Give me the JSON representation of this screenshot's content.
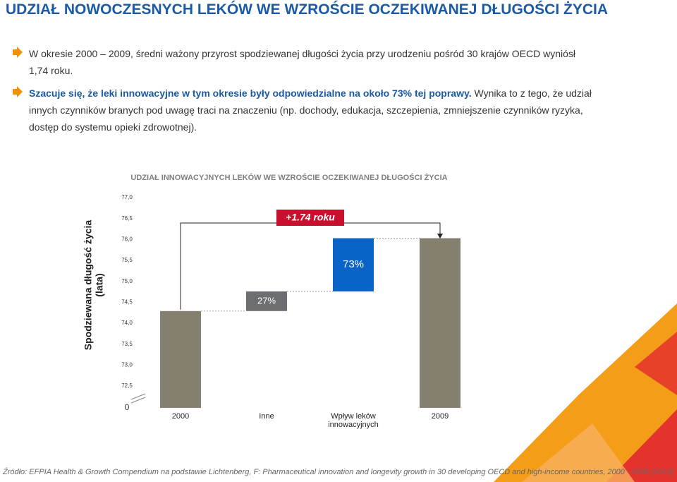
{
  "header": {
    "title": "UDZIAŁ NOWOCZESNYCH LEKÓW WE WZROŚCIE OCZEKIWANEJ DŁUGOŚCI ŻYCIA"
  },
  "bullets": [
    {
      "text": "W okresie 2000 – 2009, średni ważony przyrost spodziewanej długości życia przy urodzeniu pośród 30 krajów OECD wyniósł 1,74 roku."
    },
    {
      "bold": "Szacuje się, że leki innowacyjne w tym okresie były odpowiedzialne na około 73% tej poprawy.",
      "text": "Wynika to z tego, że udział innych czynników branych pod uwagę traci na znaczeniu (np. dochody, edukacja, szczepienia, zmniejszenie czynników ryzyka, dostęp do systemu opieki zdrowotnej)."
    }
  ],
  "chart_data": {
    "type": "waterfall",
    "title": "UDZIAŁ INNOWACYJNYCH LEKÓW WE WZROŚCIE OCZEKIWANEJ DŁUGOŚCI ŻYCIA",
    "y_label": [
      "Spodziewana długość życia",
      "(lata)"
    ],
    "categories": [
      "2000",
      "Inne",
      "Wpływ leków innowacyjnych",
      "2009"
    ],
    "values": [
      74.29,
      0.47,
      1.27,
      76.03
    ],
    "value_labels": [
      null,
      "27%",
      "73%",
      null
    ],
    "colors": [
      "#857f70",
      "#6d6e71",
      "#0a64c8",
      "#857f70"
    ],
    "annotation": "+1.74 roku",
    "ylim": [
      72.5,
      77.0
    ],
    "yticks": [
      {
        "value": 77.0,
        "label": "77,0"
      },
      {
        "value": 76.5,
        "label": "76,5"
      },
      {
        "value": 76.0,
        "label": "76,0"
      },
      {
        "value": 75.5,
        "label": "75,5"
      },
      {
        "value": 75.0,
        "label": "75,0"
      },
      {
        "value": 74.5,
        "label": "74,5"
      },
      {
        "value": 74.0,
        "label": "74,0"
      },
      {
        "value": 73.5,
        "label": "73,5"
      },
      {
        "value": 73.0,
        "label": "73,0"
      },
      {
        "value": 72.5,
        "label": "72,5"
      },
      0
    ],
    "axis_break": true
  },
  "footer": {
    "source": "Źródło: EFPIA Health & Growth Compendium na podstawie  Lichtenberg, F: Pharmaceutical innovation and longevity growth in 30 developing OECD and high-income countries, 2000 - 2009 (2012)"
  }
}
